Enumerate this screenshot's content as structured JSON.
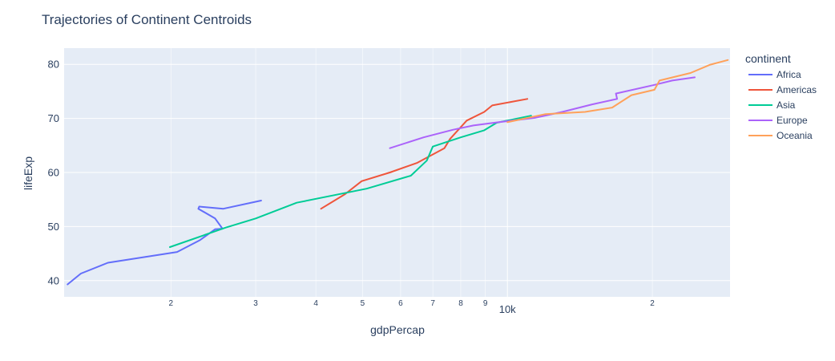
{
  "chart_data": {
    "type": "line",
    "title": "Trajectories of Continent Centroids",
    "xlabel": "gdpPercap",
    "ylabel": "lifeExp",
    "x_scale": "log",
    "xlim": [
      1200,
      29000
    ],
    "ylim": [
      37,
      83
    ],
    "x_ticks": [
      {
        "value": 2000,
        "label": "2",
        "minor": true
      },
      {
        "value": 3000,
        "label": "3",
        "minor": true
      },
      {
        "value": 4000,
        "label": "4",
        "minor": true
      },
      {
        "value": 5000,
        "label": "5",
        "minor": true
      },
      {
        "value": 6000,
        "label": "6",
        "minor": true
      },
      {
        "value": 7000,
        "label": "7",
        "minor": true
      },
      {
        "value": 8000,
        "label": "8",
        "minor": true
      },
      {
        "value": 9000,
        "label": "9",
        "minor": true
      },
      {
        "value": 10000,
        "label": "10k",
        "minor": false
      },
      {
        "value": 20000,
        "label": "2",
        "minor": true
      }
    ],
    "y_ticks": [
      40,
      50,
      60,
      70,
      80
    ],
    "grid": true,
    "legend": {
      "title": "continent",
      "position": "right"
    },
    "series": [
      {
        "name": "Africa",
        "color": "#636efa",
        "points": [
          [
            1220,
            39.3
          ],
          [
            1300,
            41.3
          ],
          [
            1480,
            43.3
          ],
          [
            2060,
            45.3
          ],
          [
            2300,
            47.5
          ],
          [
            2470,
            49.5
          ],
          [
            2560,
            49.6
          ],
          [
            2470,
            51.5
          ],
          [
            2280,
            53.3
          ],
          [
            2290,
            53.7
          ],
          [
            2570,
            53.3
          ],
          [
            3080,
            54.8
          ]
        ]
      },
      {
        "name": "Americas",
        "color": "#EF553B",
        "points": [
          [
            4100,
            53.3
          ],
          [
            4600,
            56.0
          ],
          [
            4980,
            58.4
          ],
          [
            5700,
            60.0
          ],
          [
            6500,
            61.8
          ],
          [
            7400,
            64.5
          ],
          [
            7600,
            66.2
          ],
          [
            8230,
            69.6
          ],
          [
            8950,
            71.2
          ],
          [
            9300,
            72.4
          ],
          [
            11000,
            73.6
          ]
        ]
      },
      {
        "name": "Asia",
        "color": "#00cc96",
        "points": [
          [
            1990,
            46.2
          ],
          [
            2600,
            49.8
          ],
          [
            3000,
            51.5
          ],
          [
            3650,
            54.4
          ],
          [
            5100,
            57.0
          ],
          [
            6300,
            59.4
          ],
          [
            6800,
            62.2
          ],
          [
            7000,
            64.8
          ],
          [
            8000,
            66.5
          ],
          [
            8950,
            67.8
          ],
          [
            9500,
            69.2
          ],
          [
            11200,
            70.5
          ]
        ]
      },
      {
        "name": "Europe",
        "color": "#ab63fa",
        "points": [
          [
            5700,
            64.5
          ],
          [
            6700,
            66.5
          ],
          [
            7700,
            67.9
          ],
          [
            8500,
            68.7
          ],
          [
            9600,
            69.3
          ],
          [
            11400,
            70.1
          ],
          [
            13000,
            71.2
          ],
          [
            15000,
            72.6
          ],
          [
            16900,
            73.6
          ],
          [
            16800,
            74.6
          ],
          [
            20200,
            76.2
          ],
          [
            22000,
            77.0
          ],
          [
            24500,
            77.6
          ]
        ]
      },
      {
        "name": "Oceania",
        "color": "#FFA15A",
        "points": [
          [
            10000,
            69.3
          ],
          [
            12000,
            70.8
          ],
          [
            14500,
            71.2
          ],
          [
            16500,
            72.0
          ],
          [
            18100,
            74.3
          ],
          [
            20200,
            75.3
          ],
          [
            20700,
            77.0
          ],
          [
            24000,
            78.4
          ],
          [
            26300,
            79.9
          ],
          [
            28700,
            80.8
          ]
        ]
      }
    ]
  }
}
